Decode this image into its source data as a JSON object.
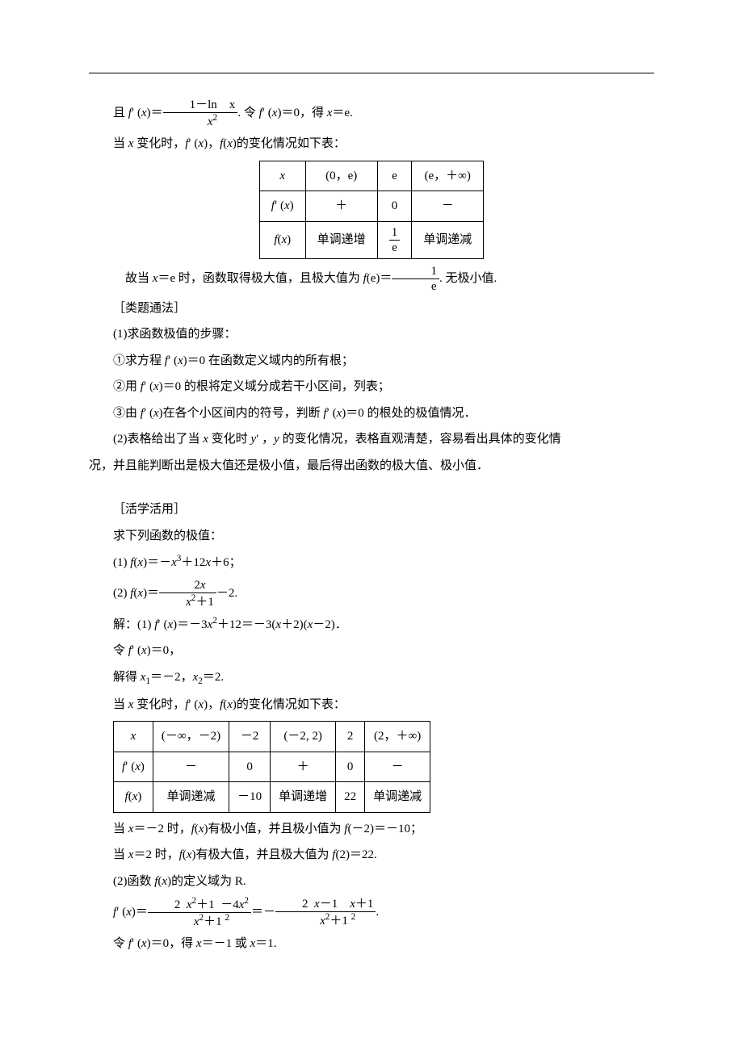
{
  "top": {
    "line1_a": "且 ",
    "line1_b": "′ (",
    "line1_c": ")＝",
    "line1_d": ". 令 ",
    "line1_e": "′ (",
    "line1_f": ")＝0，得 ",
    "line1_g": "＝e.",
    "frac1_num": "1－ln　x",
    "frac1_den": "x",
    "line2_a": "当 ",
    "line2_b": " 变化时，",
    "line2_c": "′ (",
    "line2_d": ")，",
    "line2_e": "(",
    "line2_f": ")的变化情况如下表："
  },
  "table1": {
    "r1": [
      "x",
      "(0，e)",
      "e",
      "(e，＋∞)"
    ],
    "r2": [
      "f′ (x)",
      "＋",
      "0",
      "－"
    ],
    "r3": [
      "f(x)",
      "单调递增",
      "1/e",
      "单调递减"
    ]
  },
  "mid": {
    "line3_a": "故当 ",
    "line3_b": "＝e 时，函数取得极大值，且极大值为 ",
    "line3_c": "(e)＝",
    "line3_d": ". 无极小值.",
    "frac1e_num": "1",
    "frac1e_den": "e",
    "tf": "［类题通法］",
    "s1": "(1)求函数极值的步骤：",
    "s1a_a": "①求方程 ",
    "s1a_b": "′ (",
    "s1a_c": ")＝0 在函数定义域内的所有根；",
    "s1b_a": "②用 ",
    "s1b_b": "′ (",
    "s1b_c": ")＝0 的根将定义域分成若干小区间，列表；",
    "s1c_a": "③由 ",
    "s1c_b": "′ (",
    "s1c_c": ")在各个小区间内的符号，判断 ",
    "s1c_d": "′ (",
    "s1c_e": ")＝0 的根处的极值情况．",
    "s2_a": "(2)表格给出了当 ",
    "s2_b": " 变化时 ",
    "s2_c": "′ ，",
    "s2_d": " 的变化情况，表格直观清楚，容易看出具体的变化情",
    "s2_e": "况，并且能判断出是极大值还是极小值，最后得出函数的极大值、极小值．"
  },
  "act": {
    "title": "［活学活用］",
    "q": "求下列函数的极值：",
    "q1_a": "(1) ",
    "q1_b": "(",
    "q1_c": ")＝－",
    "q1_d": "＋12",
    "q1_e": "＋6；",
    "q2_a": "(2) ",
    "q2_b": "(",
    "q2_c": ")＝",
    "q2_d": "－2.",
    "frac2_num": "2x",
    "frac2_den_a": "x",
    "frac2_den_b": "＋1",
    "sol1_a": "解：(1) ",
    "sol1_b": "′ (",
    "sol1_c": ")＝－3",
    "sol1_d": "＋12＝－3(",
    "sol1_e": "＋2)(",
    "sol1_f": "－2)．",
    "sol2_a": "令 ",
    "sol2_b": "′ (",
    "sol2_c": ")＝0，",
    "sol3_a": "解得 ",
    "sol3_b": "＝－2，",
    "sol3_c": "＝2.",
    "sol4_a": "当 ",
    "sol4_b": " 变化时，",
    "sol4_c": "′ (",
    "sol4_d": ")，",
    "sol4_e": "(",
    "sol4_f": ")的变化情况如下表："
  },
  "table2": {
    "r1": [
      "x",
      "(－∞，－2)",
      "－2",
      "(－2, 2)",
      "2",
      "(2，＋∞)"
    ],
    "r2": [
      "f′ (x)",
      "－",
      "0",
      "＋",
      "0",
      "－"
    ],
    "r3": [
      "f(x)",
      "单调递减",
      "－10",
      "单调递增",
      "22",
      "单调递减"
    ]
  },
  "bot": {
    "b1_a": "当 ",
    "b1_b": "＝－2 时，",
    "b1_c": "(",
    "b1_d": ")有极小值，并且极小值为 ",
    "b1_e": "(－2)＝－10；",
    "b2_a": "当 ",
    "b2_b": "＝2 时，",
    "b2_c": "(",
    "b2_d": ")有极大值，并且极大值为 ",
    "b2_e": "(2)＝22.",
    "b3_a": "(2)函数 ",
    "b3_b": "(",
    "b3_c": ")的定义域为 R.",
    "b4_a": "′ (",
    "b4_b": ")＝",
    "b4_c": "＝－",
    "b4_d": ".",
    "fracL_num_a": "2",
    "fracL_num_b": "x",
    "fracL_num_c": "＋1",
    "fracL_num_d": "－4",
    "fracL_num_e": "x",
    "fracL_den_a": "x",
    "fracL_den_b": "＋1",
    "fracR_num_a": "2",
    "fracR_num_b": "x",
    "fracR_num_c": "－1",
    "fracR_num_d": "x",
    "fracR_num_e": "＋1",
    "fracR_den_a": "x",
    "fracR_den_b": "＋1",
    "b5_a": "令 ",
    "b5_b": "′ (",
    "b5_c": ")＝0，得 ",
    "b5_d": "＝－1 或 ",
    "b5_e": "＝1."
  }
}
